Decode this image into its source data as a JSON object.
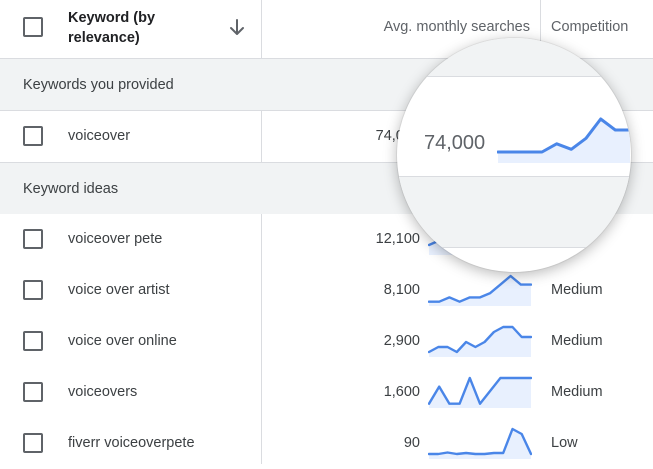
{
  "header": {
    "keyword_label": "Keyword (by relevance)",
    "avg_searches_label": "Avg. monthly searches",
    "competition_label": "Competition",
    "sort_icon": "arrow-down-icon"
  },
  "sections": {
    "provided_label": "Keywords you provided",
    "ideas_label": "Keyword ideas"
  },
  "provided_rows": [
    {
      "keyword": "voiceover",
      "avg_searches": "74,000",
      "competition": "",
      "trend": [
        2,
        2,
        2,
        3,
        2,
        3,
        5,
        8,
        6,
        6
      ]
    }
  ],
  "idea_rows": [
    {
      "keyword": "voiceover pete",
      "avg_searches": "12,100",
      "competition": "",
      "trend": [
        2,
        3,
        2,
        2,
        3,
        4,
        5,
        6,
        5,
        5
      ]
    },
    {
      "keyword": "voice over artist",
      "avg_searches": "8,100",
      "competition": "Medium",
      "trend": [
        1,
        1,
        2,
        1,
        2,
        2,
        3,
        5,
        7,
        5,
        5
      ]
    },
    {
      "keyword": "voice over online",
      "avg_searches": "2,900",
      "competition": "Medium",
      "trend": [
        1,
        2,
        2,
        1,
        3,
        2,
        3,
        5,
        6,
        6,
        4,
        4
      ]
    },
    {
      "keyword": "voiceovers",
      "avg_searches": "1,600",
      "competition": "Medium",
      "trend": [
        1,
        5,
        1,
        1,
        7,
        1,
        4,
        7,
        7,
        7,
        7
      ]
    },
    {
      "keyword": "fiverr voiceoverpete",
      "avg_searches": "90",
      "competition": "Low",
      "trend": [
        1,
        1,
        1.3,
        1,
        1.2,
        1,
        1,
        1.2,
        1.2,
        6,
        5,
        1
      ]
    }
  ],
  "magnifier": {
    "value": "74,000",
    "trend": [
      2,
      2,
      2,
      2,
      3.5,
      2.5,
      4.5,
      8,
      6,
      6
    ]
  }
}
